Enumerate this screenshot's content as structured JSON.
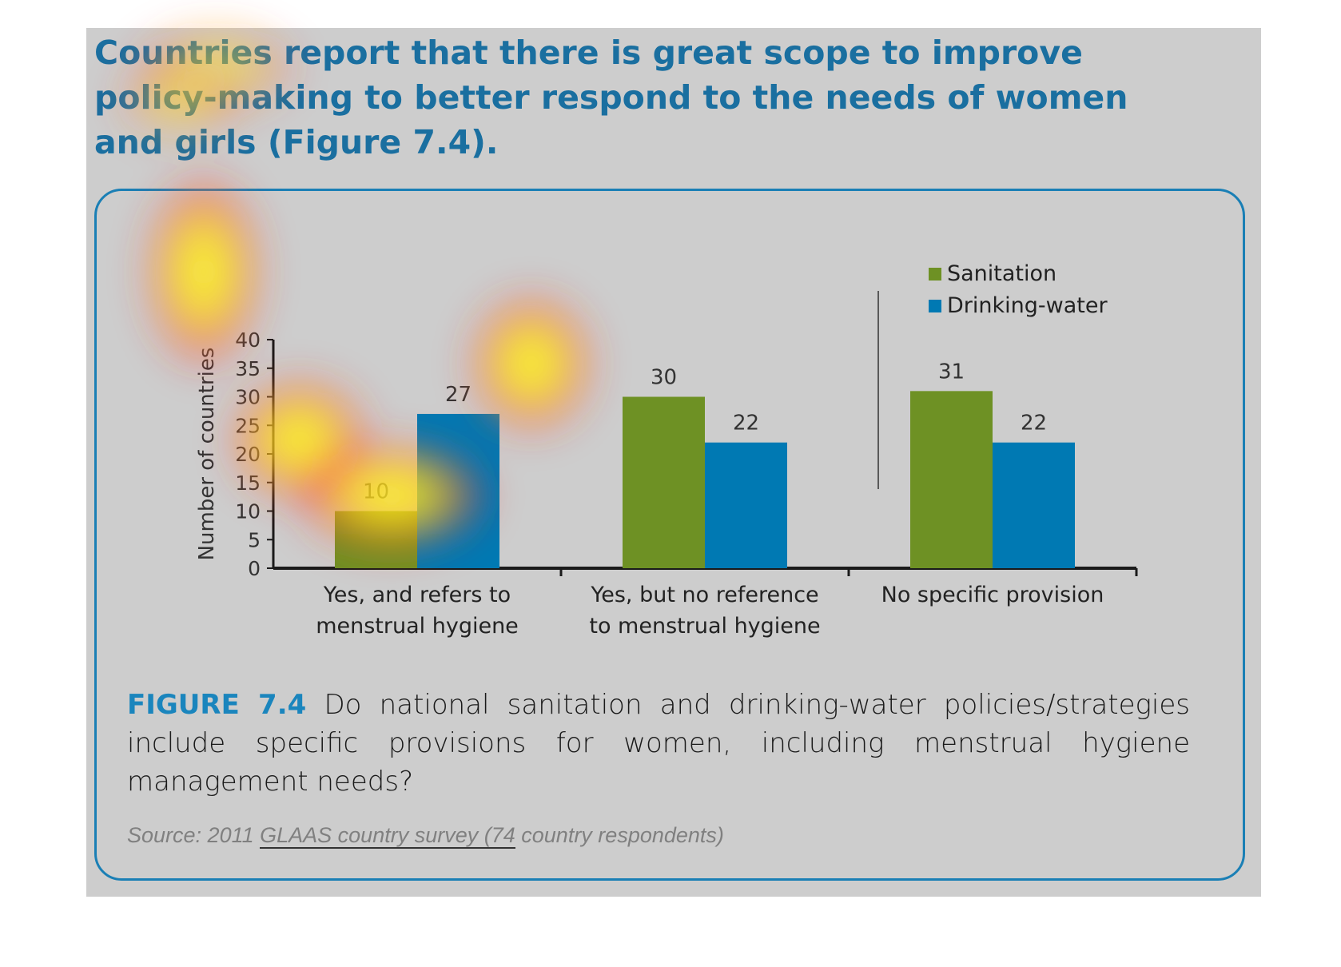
{
  "headline": "Countries report that there is great scope to improve policy-making to better respond to the needs of women and girls (Figure 7.4).",
  "chart_data": {
    "type": "bar",
    "ylabel": "Number of countries",
    "ylim": [
      0,
      40
    ],
    "yticks": [
      0,
      5,
      10,
      15,
      20,
      25,
      30,
      35,
      40
    ],
    "categories": [
      [
        "Yes, and refers to",
        "menstrual hygiene"
      ],
      [
        "Yes, but no reference",
        "to menstrual hygiene"
      ],
      [
        "No specific provision"
      ]
    ],
    "series": [
      {
        "name": "Sanitation",
        "color": "#6e9124",
        "values": [
          10,
          30,
          31
        ]
      },
      {
        "name": "Drinking-water",
        "color": "#0079b3",
        "values": [
          27,
          22,
          22
        ]
      }
    ],
    "legend_position": "top-right",
    "grid": false
  },
  "caption": {
    "label": "FIGURE 7.4",
    "text": " Do national sanitation and drinking-water policies/strategies include specific provisions for women, including menstrual hygiene management needs?"
  },
  "source": {
    "prefix": "Source: 2011 ",
    "underlined": "GLAAS country survey (74",
    "suffix": " country respondents)"
  }
}
